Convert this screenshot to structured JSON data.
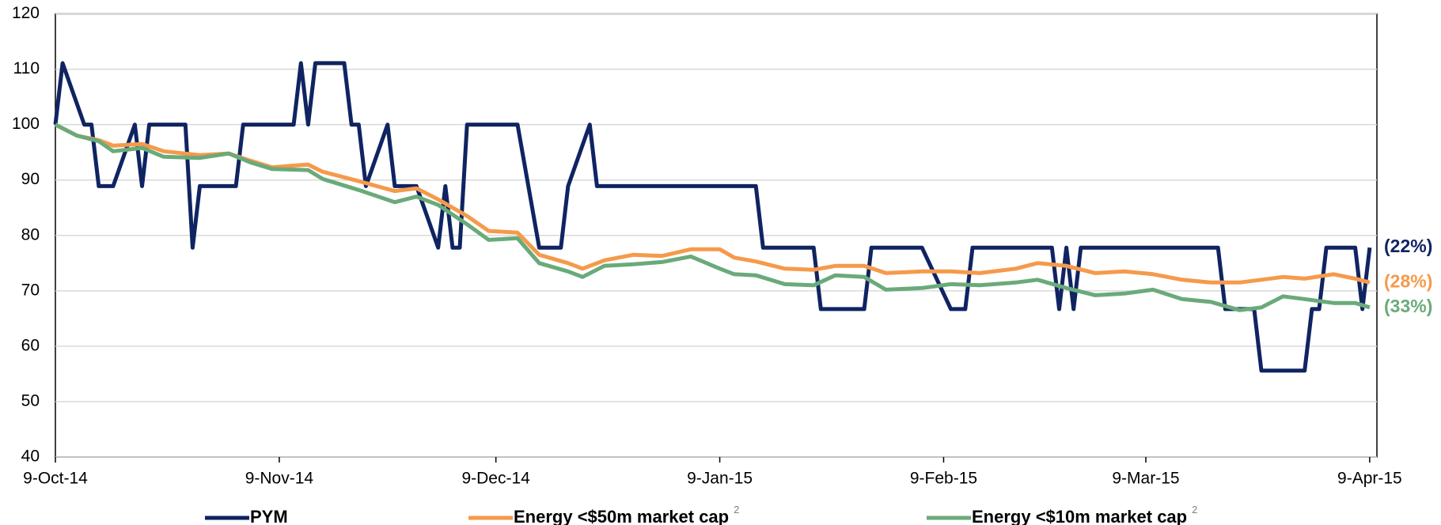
{
  "chart_data": {
    "type": "line",
    "xlim": [
      "2014-10-09",
      "2015-04-10"
    ],
    "xticks": [
      {
        "value": "2014-10-09",
        "label": "9-Oct-14"
      },
      {
        "value": "2014-11-09",
        "label": "9-Nov-14"
      },
      {
        "value": "2014-12-09",
        "label": "9-Dec-14"
      },
      {
        "value": "2015-01-09",
        "label": "9-Jan-15"
      },
      {
        "value": "2015-02-09",
        "label": "9-Feb-15"
      },
      {
        "value": "2015-03-09",
        "label": "9-Mar-15"
      },
      {
        "value": "2015-04-09",
        "label": "9-Apr-15"
      }
    ],
    "ylim": [
      40,
      120
    ],
    "yticks": [
      40,
      50,
      60,
      70,
      80,
      90,
      100,
      110,
      120
    ],
    "grid": true,
    "series": [
      {
        "name": "PYM",
        "color": "#0f2461",
        "end_label": "(22%)",
        "x": [
          "2014-10-09",
          "2014-10-10",
          "2014-10-13",
          "2014-10-14",
          "2014-10-15",
          "2014-10-17",
          "2014-10-20",
          "2014-10-21",
          "2014-10-22",
          "2014-10-27",
          "2014-10-28",
          "2014-10-29",
          "2014-11-03",
          "2014-11-04",
          "2014-11-11",
          "2014-11-12",
          "2014-11-13",
          "2014-11-14",
          "2014-11-18",
          "2014-11-19",
          "2014-11-20",
          "2014-11-21",
          "2014-11-24",
          "2014-11-25",
          "2014-11-28",
          "2014-12-01",
          "2014-12-02",
          "2014-12-03",
          "2014-12-04",
          "2014-12-05",
          "2014-12-12",
          "2014-12-15",
          "2014-12-18",
          "2014-12-19",
          "2014-12-22",
          "2014-12-23",
          "2015-01-14",
          "2015-01-15",
          "2015-01-22",
          "2015-01-23",
          "2015-01-29",
          "2015-01-30",
          "2015-02-06",
          "2015-02-10",
          "2015-02-12",
          "2015-02-13",
          "2015-02-24",
          "2015-02-25",
          "2015-02-26",
          "2015-02-27",
          "2015-02-28",
          "2015-03-19",
          "2015-03-20",
          "2015-03-24",
          "2015-03-25",
          "2015-03-31",
          "2015-04-01",
          "2015-04-02",
          "2015-04-03",
          "2015-04-07",
          "2015-04-08",
          "2015-04-09"
        ],
        "values": [
          100,
          111.1,
          100,
          100,
          88.9,
          88.9,
          100,
          88.9,
          100,
          100,
          77.8,
          88.9,
          88.9,
          100,
          100,
          111.1,
          100,
          111.1,
          111.1,
          100,
          100,
          88.9,
          100,
          88.9,
          88.9,
          77.8,
          88.9,
          77.8,
          77.8,
          100,
          100,
          77.8,
          77.8,
          88.9,
          100,
          88.9,
          88.9,
          77.8,
          77.8,
          66.7,
          66.7,
          77.8,
          77.8,
          66.7,
          66.7,
          77.8,
          77.8,
          66.7,
          77.8,
          66.7,
          77.8,
          77.8,
          66.7,
          66.7,
          55.6,
          55.6,
          66.7,
          66.7,
          77.8,
          77.8,
          66.7,
          77.8
        ]
      },
      {
        "name": "Energy <$50m market cap",
        "superscript": "2",
        "color": "#f59a4b",
        "end_label": "(28%)",
        "x": [
          "2014-10-09",
          "2014-10-12",
          "2014-10-15",
          "2014-10-17",
          "2014-10-21",
          "2014-10-24",
          "2014-10-29",
          "2014-11-02",
          "2014-11-05",
          "2014-11-08",
          "2014-11-13",
          "2014-11-15",
          "2014-11-20",
          "2014-11-25",
          "2014-11-28",
          "2014-12-01",
          "2014-12-05",
          "2014-12-08",
          "2014-12-12",
          "2014-12-15",
          "2014-12-19",
          "2014-12-21",
          "2014-12-24",
          "2014-12-28",
          "2015-01-01",
          "2015-01-05",
          "2015-01-09",
          "2015-01-11",
          "2015-01-14",
          "2015-01-18",
          "2015-01-22",
          "2015-01-25",
          "2015-01-29",
          "2015-02-01",
          "2015-02-06",
          "2015-02-10",
          "2015-02-14",
          "2015-02-19",
          "2015-02-22",
          "2015-02-26",
          "2015-03-02",
          "2015-03-06",
          "2015-03-10",
          "2015-03-14",
          "2015-03-18",
          "2015-03-22",
          "2015-03-25",
          "2015-03-28",
          "2015-03-31",
          "2015-04-04",
          "2015-04-07",
          "2015-04-09"
        ],
        "values": [
          100,
          98,
          97.2,
          96.2,
          96.5,
          95.2,
          94.5,
          94.8,
          93.5,
          92.3,
          92.8,
          91.5,
          89.8,
          88,
          88.5,
          86.5,
          83.5,
          80.8,
          80.5,
          76.5,
          75,
          74,
          75.5,
          76.5,
          76.3,
          77.5,
          77.5,
          76,
          75.3,
          74,
          73.8,
          74.5,
          74.5,
          73.2,
          73.5,
          73.5,
          73.2,
          74,
          75,
          74.5,
          73.2,
          73.5,
          73,
          72,
          71.5,
          71.5,
          72,
          72.5,
          72.2,
          73,
          72.2,
          71.5
        ]
      },
      {
        "name": "Energy <$10m market cap",
        "superscript": "2",
        "color": "#6aaa7a",
        "end_label": "(33%)",
        "x": [
          "2014-10-09",
          "2014-10-12",
          "2014-10-15",
          "2014-10-17",
          "2014-10-21",
          "2014-10-24",
          "2014-10-29",
          "2014-11-02",
          "2014-11-05",
          "2014-11-08",
          "2014-11-13",
          "2014-11-15",
          "2014-11-20",
          "2014-11-25",
          "2014-11-28",
          "2014-12-01",
          "2014-12-05",
          "2014-12-08",
          "2014-12-12",
          "2014-12-15",
          "2014-12-19",
          "2014-12-21",
          "2014-12-24",
          "2014-12-28",
          "2015-01-01",
          "2015-01-05",
          "2015-01-09",
          "2015-01-11",
          "2015-01-14",
          "2015-01-18",
          "2015-01-22",
          "2015-01-25",
          "2015-01-29",
          "2015-02-01",
          "2015-02-06",
          "2015-02-10",
          "2015-02-14",
          "2015-02-19",
          "2015-02-22",
          "2015-02-26",
          "2015-03-02",
          "2015-03-06",
          "2015-03-10",
          "2015-03-14",
          "2015-03-18",
          "2015-03-22",
          "2015-03-25",
          "2015-03-28",
          "2015-03-31",
          "2015-04-04",
          "2015-04-07",
          "2015-04-09"
        ],
        "values": [
          100,
          98,
          97,
          95.2,
          95.8,
          94.2,
          94,
          94.8,
          93.2,
          92,
          91.8,
          90.2,
          88.2,
          86,
          87,
          85.5,
          82,
          79.2,
          79.5,
          75,
          73.5,
          72.5,
          74.5,
          74.8,
          75.2,
          76.2,
          74,
          73,
          72.8,
          71.2,
          71,
          72.8,
          72.5,
          70.2,
          70.5,
          71.2,
          71,
          71.5,
          72,
          70.5,
          69.2,
          69.5,
          70.2,
          68.5,
          68,
          66.5,
          67,
          69,
          68.5,
          67.8,
          67.8,
          67
        ]
      }
    ]
  }
}
